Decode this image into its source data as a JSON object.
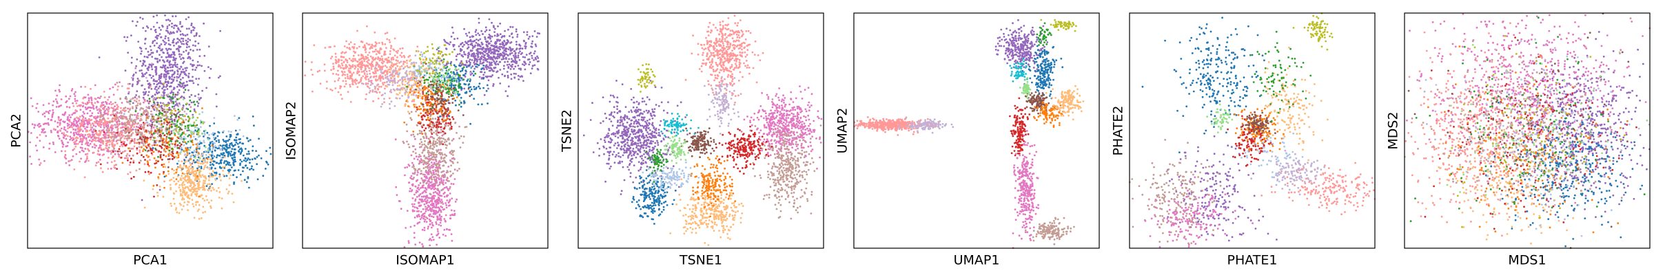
{
  "palette": [
    "#1f77b4",
    "#aec7e8",
    "#ff7f0e",
    "#ffbb78",
    "#2ca02c",
    "#98df8a",
    "#d62728",
    "#ff9896",
    "#9467bd",
    "#c5b0d5",
    "#8c564b",
    "#c49c94",
    "#e377c2",
    "#f7b6d2",
    "#7f7f7f",
    "#c7c7c7",
    "#bcbd22",
    "#dbdb8d",
    "#17becf",
    "#9edae5"
  ],
  "chart_data": [
    {
      "type": "scatter",
      "title": "",
      "xlabel": "PCA1",
      "ylabel": "PCA2",
      "grid": false,
      "ticks": false,
      "legend": "none",
      "xlim": [
        -10,
        10
      ],
      "ylim": [
        -10,
        10
      ],
      "clusters": [
        {
          "color": "#9467bd",
          "n": 700,
          "cx": 1.5,
          "cy": 5.0,
          "sx": 1.4,
          "sy": 2.6
        },
        {
          "color": "#e377c2",
          "n": 650,
          "cx": -5.0,
          "cy": 0.5,
          "sx": 2.3,
          "sy": 1.4
        },
        {
          "color": "#ff9896",
          "n": 400,
          "cx": -3.0,
          "cy": 0.0,
          "sx": 2.0,
          "sy": 1.5
        },
        {
          "color": "#c49c94",
          "n": 250,
          "cx": -1.0,
          "cy": 0.5,
          "sx": 1.5,
          "sy": 1.3
        },
        {
          "color": "#1f77b4",
          "n": 350,
          "cx": 6.0,
          "cy": -2.0,
          "sx": 1.8,
          "sy": 1.1
        },
        {
          "color": "#ffbb78",
          "n": 350,
          "cx": 3.5,
          "cy": -4.5,
          "sx": 1.3,
          "sy": 1.2
        },
        {
          "color": "#aec7e8",
          "n": 100,
          "cx": 4.0,
          "cy": -1.0,
          "sx": 1.5,
          "sy": 1.0
        },
        {
          "color": "#ff7f0e",
          "n": 120,
          "cx": 1.5,
          "cy": -1.5,
          "sx": 1.5,
          "sy": 1.2
        },
        {
          "color": "#2ca02c",
          "n": 100,
          "cx": 2.0,
          "cy": 0.5,
          "sx": 1.2,
          "sy": 1.2
        },
        {
          "color": "#d62728",
          "n": 100,
          "cx": 0.0,
          "cy": -1.5,
          "sx": 1.5,
          "sy": 1.2
        },
        {
          "color": "#8c564b",
          "n": 60,
          "cx": 1.0,
          "cy": 0.0,
          "sx": 1.2,
          "sy": 1.2
        },
        {
          "color": "#c5b0d5",
          "n": 60,
          "cx": 0.5,
          "cy": 1.5,
          "sx": 1.5,
          "sy": 1.5
        },
        {
          "color": "#bcbd22",
          "n": 40,
          "cx": 2.0,
          "cy": 1.0,
          "sx": 1.0,
          "sy": 1.0
        },
        {
          "color": "#98df8a",
          "n": 40,
          "cx": 3.0,
          "cy": 0.0,
          "sx": 1.0,
          "sy": 1.0
        }
      ]
    },
    {
      "type": "scatter",
      "title": "",
      "xlabel": "ISOMAP1",
      "ylabel": "ISOMAP2",
      "grid": false,
      "ticks": false,
      "legend": "none",
      "xlim": [
        -10,
        10
      ],
      "ylim": [
        -10,
        10
      ],
      "clusters": [
        {
          "color": "#9467bd",
          "n": 650,
          "cx": 5.5,
          "cy": 6.5,
          "sx": 1.8,
          "sy": 1.1
        },
        {
          "color": "#ff9896",
          "n": 550,
          "cx": -4.5,
          "cy": 5.5,
          "sx": 1.8,
          "sy": 1.1
        },
        {
          "color": "#e377c2",
          "n": 550,
          "cx": 0.5,
          "cy": -5.5,
          "sx": 0.9,
          "sy": 2.2
        },
        {
          "color": "#c49c94",
          "n": 350,
          "cx": 0.7,
          "cy": -1.0,
          "sx": 0.9,
          "sy": 1.8
        },
        {
          "color": "#1f77b4",
          "n": 180,
          "cx": 2.5,
          "cy": 4.0,
          "sx": 1.2,
          "sy": 1.0
        },
        {
          "color": "#ffbb78",
          "n": 150,
          "cx": -1.0,
          "cy": 4.0,
          "sx": 1.0,
          "sy": 1.0
        },
        {
          "color": "#c5b0d5",
          "n": 120,
          "cx": -2.5,
          "cy": 4.0,
          "sx": 1.2,
          "sy": 1.0
        },
        {
          "color": "#d62728",
          "n": 120,
          "cx": 1.0,
          "cy": 1.5,
          "sx": 0.8,
          "sy": 1.2
        },
        {
          "color": "#ff7f0e",
          "n": 120,
          "cx": 0.5,
          "cy": 2.5,
          "sx": 1.0,
          "sy": 1.0
        },
        {
          "color": "#2ca02c",
          "n": 80,
          "cx": 1.5,
          "cy": 4.0,
          "sx": 1.0,
          "sy": 0.8
        },
        {
          "color": "#aec7e8",
          "n": 80,
          "cx": 0.5,
          "cy": 5.0,
          "sx": 1.0,
          "sy": 0.8
        },
        {
          "color": "#8c564b",
          "n": 80,
          "cx": 1.0,
          "cy": 3.0,
          "sx": 0.8,
          "sy": 0.8
        },
        {
          "color": "#bcbd22",
          "n": 60,
          "cx": 0.8,
          "cy": 6.0,
          "sx": 0.7,
          "sy": 0.7
        },
        {
          "color": "#98df8a",
          "n": 50,
          "cx": 1.5,
          "cy": 4.5,
          "sx": 0.8,
          "sy": 0.8
        }
      ]
    },
    {
      "type": "scatter",
      "title": "",
      "xlabel": "TSNE1",
      "ylabel": "TSNE2",
      "grid": false,
      "ticks": false,
      "legend": "none",
      "xlim": [
        -10,
        10
      ],
      "ylim": [
        -10,
        10
      ],
      "clusters": [
        {
          "color": "#9467bd",
          "n": 600,
          "cx": -5.3,
          "cy": -0.5,
          "sx": 1.3,
          "sy": 1.5
        },
        {
          "color": "#e377c2",
          "n": 500,
          "cx": 7.0,
          "cy": 0.5,
          "sx": 1.3,
          "sy": 1.2
        },
        {
          "color": "#ff9896",
          "n": 450,
          "cx": 2.0,
          "cy": 6.5,
          "sx": 1.0,
          "sy": 1.4
        },
        {
          "color": "#c49c94",
          "n": 350,
          "cx": 7.0,
          "cy": -3.5,
          "sx": 1.0,
          "sy": 1.6
        },
        {
          "color": "#ffbb78",
          "n": 300,
          "cx": 1.0,
          "cy": -7.0,
          "sx": 1.2,
          "sy": 0.9
        },
        {
          "color": "#1f77b4",
          "n": 200,
          "cx": -4.0,
          "cy": -5.5,
          "sx": 0.7,
          "sy": 0.9
        },
        {
          "color": "#ff7f0e",
          "n": 180,
          "cx": 1.0,
          "cy": -4.5,
          "sx": 0.8,
          "sy": 1.0
        },
        {
          "color": "#d62728",
          "n": 200,
          "cx": 3.5,
          "cy": -1.5,
          "sx": 0.8,
          "sy": 0.7
        },
        {
          "color": "#8c564b",
          "n": 150,
          "cx": 0.0,
          "cy": -1.0,
          "sx": 0.5,
          "sy": 0.5
        },
        {
          "color": "#c5b0d5",
          "n": 120,
          "cx": 1.8,
          "cy": 2.5,
          "sx": 0.5,
          "sy": 0.9
        },
        {
          "color": "#aec7e8",
          "n": 120,
          "cx": -2.5,
          "cy": -4.0,
          "sx": 0.9,
          "sy": 0.5
        },
        {
          "color": "#17becf",
          "n": 80,
          "cx": -2.0,
          "cy": 0.5,
          "sx": 0.6,
          "sy": 0.4
        },
        {
          "color": "#98df8a",
          "n": 80,
          "cx": -2.0,
          "cy": -1.5,
          "sx": 0.4,
          "sy": 0.5
        },
        {
          "color": "#bcbd22",
          "n": 50,
          "cx": -4.5,
          "cy": 4.5,
          "sx": 0.3,
          "sy": 0.5
        },
        {
          "color": "#2ca02c",
          "n": 60,
          "cx": -3.5,
          "cy": -2.5,
          "sx": 0.3,
          "sy": 0.5
        }
      ]
    },
    {
      "type": "scatter",
      "title": "",
      "xlabel": "UMAP1",
      "ylabel": "UMAP2",
      "grid": false,
      "ticks": false,
      "legend": "none",
      "xlim": [
        -10,
        10
      ],
      "ylim": [
        -10,
        10
      ],
      "clusters": [
        {
          "color": "#ff9896",
          "n": 400,
          "cx": -7.0,
          "cy": 0.5,
          "sx": 1.4,
          "sy": 0.22
        },
        {
          "color": "#c5b0d5",
          "n": 120,
          "cx": -4.0,
          "cy": 0.5,
          "sx": 0.9,
          "sy": 0.2
        },
        {
          "color": "#9467bd",
          "n": 300,
          "cx": 3.5,
          "cy": 7.0,
          "sx": 0.8,
          "sy": 0.8
        },
        {
          "color": "#1f77b4",
          "n": 200,
          "cx": 5.5,
          "cy": 5.0,
          "sx": 0.5,
          "sy": 1.0
        },
        {
          "color": "#e377c2",
          "n": 300,
          "cx": 4.0,
          "cy": -5.0,
          "sx": 0.4,
          "sy": 1.8
        },
        {
          "color": "#c49c94",
          "n": 150,
          "cx": 6.0,
          "cy": -8.5,
          "sx": 0.7,
          "sy": 0.4
        },
        {
          "color": "#d62728",
          "n": 150,
          "cx": 3.5,
          "cy": 0.0,
          "sx": 0.3,
          "sy": 1.0
        },
        {
          "color": "#8c564b",
          "n": 120,
          "cx": 5.0,
          "cy": 2.5,
          "sx": 0.4,
          "sy": 0.4
        },
        {
          "color": "#ff7f0e",
          "n": 100,
          "cx": 6.0,
          "cy": 1.5,
          "sx": 0.5,
          "sy": 0.5
        },
        {
          "color": "#ffbb78",
          "n": 150,
          "cx": 7.5,
          "cy": 2.5,
          "sx": 0.5,
          "sy": 0.5
        },
        {
          "color": "#17becf",
          "n": 60,
          "cx": 3.5,
          "cy": 5.0,
          "sx": 0.3,
          "sy": 0.5
        },
        {
          "color": "#98df8a",
          "n": 60,
          "cx": 4.0,
          "cy": 3.5,
          "sx": 0.2,
          "sy": 0.3
        },
        {
          "color": "#bcbd22",
          "n": 60,
          "cx": 7.0,
          "cy": 9.0,
          "sx": 0.5,
          "sy": 0.2
        },
        {
          "color": "#2ca02c",
          "n": 40,
          "cx": 5.5,
          "cy": 8.0,
          "sx": 0.3,
          "sy": 0.5
        }
      ]
    },
    {
      "type": "scatter",
      "title": "",
      "xlabel": "PHATE1",
      "ylabel": "PHATE2",
      "grid": false,
      "ticks": false,
      "legend": "none",
      "xlim": [
        -10,
        10
      ],
      "ylim": [
        -10,
        10
      ],
      "clusters": [
        {
          "color": "#1f77b4",
          "n": 250,
          "cx": -3.0,
          "cy": 4.5,
          "sx": 1.6,
          "sy": 2.2
        },
        {
          "color": "#9467bd",
          "n": 200,
          "cx": -3.0,
          "cy": -6.0,
          "sx": 1.6,
          "sy": 2.2
        },
        {
          "color": "#c49c94",
          "n": 200,
          "cx": -6.0,
          "cy": -6.0,
          "sx": 1.5,
          "sy": 1.8
        },
        {
          "color": "#e377c2",
          "n": 150,
          "cx": -5.0,
          "cy": -7.5,
          "sx": 1.5,
          "sy": 1.2
        },
        {
          "color": "#ff9896",
          "n": 200,
          "cx": 6.5,
          "cy": -5.0,
          "sx": 2.0,
          "sy": 0.9
        },
        {
          "color": "#c5b0d5",
          "n": 120,
          "cx": 3.5,
          "cy": -3.5,
          "sx": 1.2,
          "sy": 0.7
        },
        {
          "color": "#ffbb78",
          "n": 150,
          "cx": 3.0,
          "cy": 2.0,
          "sx": 1.2,
          "sy": 1.5
        },
        {
          "color": "#ff7f0e",
          "n": 150,
          "cx": 0.5,
          "cy": 0.0,
          "sx": 0.8,
          "sy": 0.8
        },
        {
          "color": "#8c564b",
          "n": 100,
          "cx": 0.5,
          "cy": 0.5,
          "sx": 0.5,
          "sy": 0.5
        },
        {
          "color": "#d62728",
          "n": 100,
          "cx": 0.0,
          "cy": -1.0,
          "sx": 0.7,
          "sy": 0.8
        },
        {
          "color": "#2ca02c",
          "n": 80,
          "cx": 2.0,
          "cy": 5.0,
          "sx": 1.2,
          "sy": 1.5
        },
        {
          "color": "#bcbd22",
          "n": 80,
          "cx": 5.5,
          "cy": 8.5,
          "sx": 0.6,
          "sy": 0.6
        },
        {
          "color": "#98df8a",
          "n": 50,
          "cx": -2.5,
          "cy": 1.0,
          "sx": 0.4,
          "sy": 0.4
        },
        {
          "color": "#aec7e8",
          "n": 60,
          "cx": 1.5,
          "cy": -2.0,
          "sx": 1.0,
          "sy": 0.8
        }
      ]
    },
    {
      "type": "scatter",
      "title": "",
      "xlabel": "MDS1",
      "ylabel": "MDS2",
      "grid": false,
      "ticks": false,
      "legend": "none",
      "xlim": [
        -10,
        10
      ],
      "ylim": [
        -10,
        10
      ],
      "clusters": [
        {
          "color": "#e377c2",
          "n": 600,
          "cx": 0.0,
          "cy": 4.0,
          "sx": 3.8,
          "sy": 2.8
        },
        {
          "color": "#9467bd",
          "n": 550,
          "cx": 4.5,
          "cy": 0.0,
          "sx": 2.4,
          "sy": 2.8
        },
        {
          "color": "#ff9896",
          "n": 500,
          "cx": -4.0,
          "cy": 0.0,
          "sx": 2.6,
          "sy": 3.0
        },
        {
          "color": "#1f77b4",
          "n": 300,
          "cx": 3.0,
          "cy": -3.5,
          "sx": 2.5,
          "sy": 2.2
        },
        {
          "color": "#ffbb78",
          "n": 250,
          "cx": -1.5,
          "cy": -4.0,
          "sx": 2.5,
          "sy": 2.2
        },
        {
          "color": "#c49c94",
          "n": 250,
          "cx": -1.0,
          "cy": 0.0,
          "sx": 3.0,
          "sy": 3.0
        },
        {
          "color": "#d62728",
          "n": 150,
          "cx": 0.0,
          "cy": -1.0,
          "sx": 3.5,
          "sy": 3.5
        },
        {
          "color": "#ff7f0e",
          "n": 150,
          "cx": 0.0,
          "cy": -2.0,
          "sx": 3.5,
          "sy": 3.5
        },
        {
          "color": "#2ca02c",
          "n": 120,
          "cx": 0.0,
          "cy": 0.0,
          "sx": 3.5,
          "sy": 3.5
        },
        {
          "color": "#aec7e8",
          "n": 120,
          "cx": 0.0,
          "cy": 0.0,
          "sx": 3.5,
          "sy": 3.5
        },
        {
          "color": "#8c564b",
          "n": 100,
          "cx": 0.0,
          "cy": 0.0,
          "sx": 3.5,
          "sy": 3.5
        },
        {
          "color": "#c5b0d5",
          "n": 100,
          "cx": 0.0,
          "cy": 0.0,
          "sx": 3.5,
          "sy": 3.5
        },
        {
          "color": "#bcbd22",
          "n": 80,
          "cx": 0.0,
          "cy": 0.0,
          "sx": 3.5,
          "sy": 3.5
        },
        {
          "color": "#98df8a",
          "n": 80,
          "cx": 0.0,
          "cy": 0.0,
          "sx": 3.5,
          "sy": 3.5
        }
      ]
    }
  ]
}
